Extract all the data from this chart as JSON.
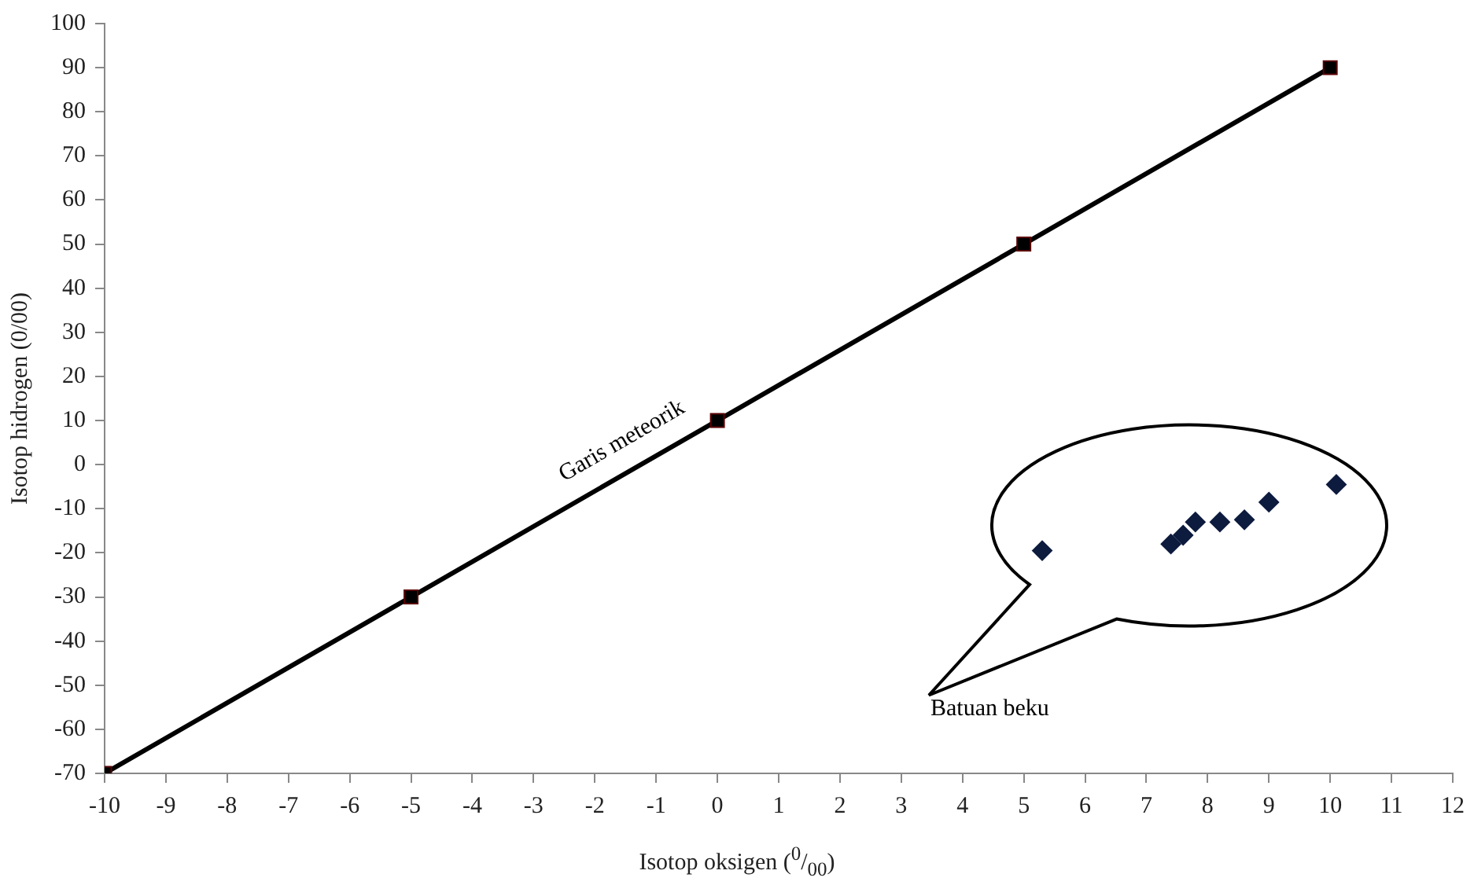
{
  "chart_data": {
    "type": "line",
    "xlabel": "Isotop oksigen ($^{0}$/$_{00}$)",
    "ylabel": "Isotop hidrogen (0/00)",
    "xlim": [
      -10,
      12
    ],
    "xticks": [
      -10,
      -9,
      -8,
      -7,
      -6,
      -5,
      -4,
      -3,
      -2,
      -1,
      0,
      1,
      2,
      3,
      4,
      5,
      6,
      7,
      8,
      9,
      10,
      11,
      12
    ],
    "ylim": [
      -70,
      100
    ],
    "yticks": [
      -70,
      -60,
      -50,
      -40,
      -30,
      -20,
      -10,
      0,
      10,
      20,
      30,
      40,
      50,
      60,
      70,
      80,
      90,
      100
    ],
    "grid": false,
    "legend": false,
    "series": [
      {
        "marker": "square",
        "color": "#000000",
        "x": [
          -10,
          -5,
          0,
          5,
          10
        ],
        "values": [
          -70,
          -30,
          10,
          50,
          90
        ]
      },
      {
        "type": "scatter",
        "marker": "diamond",
        "color": "#0d1b3e",
        "x": [
          5.3,
          7.4,
          7.6,
          7.8,
          8.2,
          8.6,
          9.0,
          10.1
        ],
        "values": [
          -19.5,
          -18,
          -16,
          -13,
          -13,
          -12.5,
          -8.5,
          -4.5
        ]
      }
    ],
    "annotations": [
      "Garis meteorik",
      "Batuan beku"
    ]
  }
}
